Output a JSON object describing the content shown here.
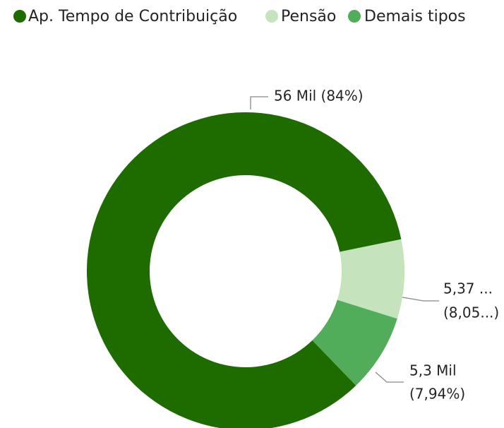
{
  "chart_data": {
    "type": "donut",
    "categories": [
      "Ap. Tempo de Contribuição",
      "Pensão",
      "Demais tipos"
    ],
    "values": [
      56000,
      5370,
      5300
    ],
    "value_labels": [
      [
        "56 Mil (84%)"
      ],
      [
        "5,37 ...",
        "(8,05...)"
      ],
      [
        "5,3 Mil",
        "(7,94%)"
      ]
    ],
    "colors": [
      "#1e6b00",
      "#c5e4bd",
      "#52ad5a"
    ],
    "legend": "top-left"
  }
}
